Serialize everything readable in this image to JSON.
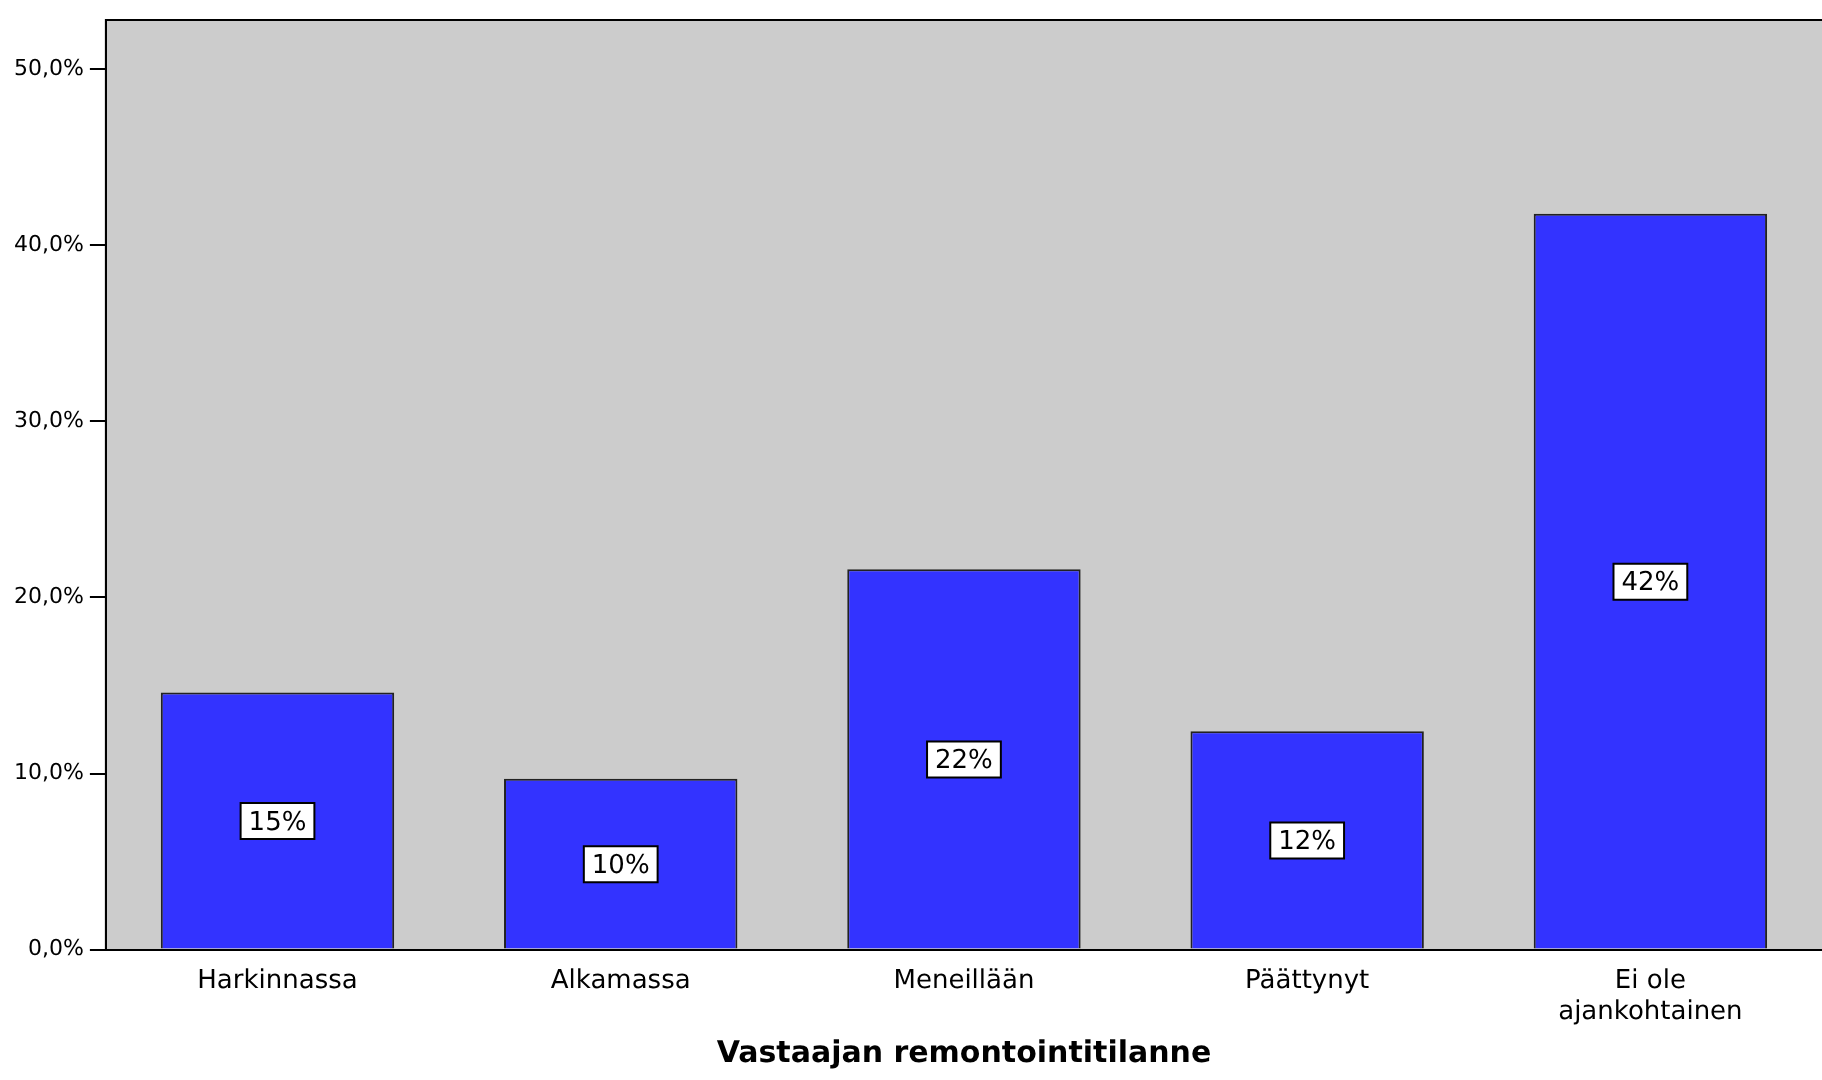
{
  "chart_data": {
    "type": "bar",
    "xlabel": "Vastaajan remontointitilanne",
    "categories": [
      "Harkinnassa",
      "Alkamassa",
      "Meneillään",
      "Päättynyt",
      "Ei ole ajankohtainen"
    ],
    "values": [
      14.6,
      9.7,
      21.6,
      12.4,
      41.8
    ],
    "value_labels": [
      "15%",
      "10%",
      "22%",
      "12%",
      "42%"
    ],
    "color": "#3333ff",
    "ylim": [
      0,
      52.8
    ],
    "yticks": [
      {
        "value": 0,
        "label": "0,0%"
      },
      {
        "value": 10,
        "label": "10,0%"
      },
      {
        "value": 20,
        "label": "20,0%"
      },
      {
        "value": 30,
        "label": "30,0%"
      },
      {
        "value": 40,
        "label": "40,0%"
      },
      {
        "value": 50,
        "label": "50,0%"
      }
    ],
    "grid": false,
    "legend": false
  }
}
